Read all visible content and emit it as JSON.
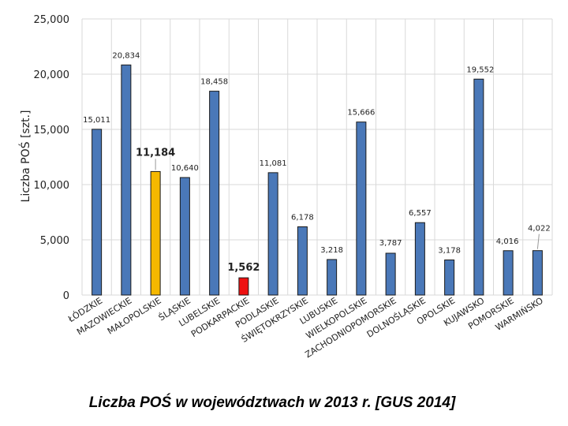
{
  "chart_data": {
    "type": "bar",
    "ylabel": "Liczba POŚ [szt.]",
    "ylim": [
      0,
      25000
    ],
    "yticks": [
      0,
      5000,
      10000,
      15000,
      20000,
      25000
    ],
    "ytick_labels": [
      "0",
      "5,000",
      "10,000",
      "15,000",
      "20,000",
      "25,000"
    ],
    "grid": true,
    "categories": [
      "ŁÓDZKIE",
      "MAZOWIECKIE",
      "MAŁOPOLSKIE",
      "ŚLĄSKIE",
      "LUBELSKIE",
      "PODKARPACKIE",
      "PODLASKIE",
      "ŚWIĘTOKRZYSKIE",
      "LUBUSKIE",
      "WIELKOPOLSKIE",
      "ZACHODNIOPOMORSKIE",
      "DOLNOŚLĄSKIE",
      "OPOLSKIE",
      "KUJAWSKO",
      "POMORSKIE",
      "WARMIŃSKO"
    ],
    "values": [
      15011,
      20834,
      11184,
      10640,
      18458,
      1562,
      11081,
      6178,
      3218,
      15666,
      3787,
      6557,
      3178,
      19552,
      4016,
      4022
    ],
    "value_labels": [
      "15,011",
      "20,834",
      "11,184",
      "10,640",
      "18,458",
      "1,562",
      "11,081",
      "6,178",
      "3,218",
      "15,666",
      "3,787",
      "6,557",
      "3,178",
      "19,552",
      "4,016",
      "4,022"
    ],
    "bar_colors": [
      "#4a78b8",
      "#4a78b8",
      "#f5b800",
      "#4a78b8",
      "#4a78b8",
      "#ee1111",
      "#4a78b8",
      "#4a78b8",
      "#4a78b8",
      "#4a78b8",
      "#4a78b8",
      "#4a78b8",
      "#4a78b8",
      "#4a78b8",
      "#4a78b8",
      "#4a78b8"
    ],
    "highlighted": [
      false,
      false,
      true,
      false,
      false,
      true,
      false,
      false,
      false,
      false,
      false,
      false,
      false,
      false,
      false,
      false
    ]
  },
  "caption": "Liczba POŚ w województwach w 2013 r. [GUS 2014]"
}
